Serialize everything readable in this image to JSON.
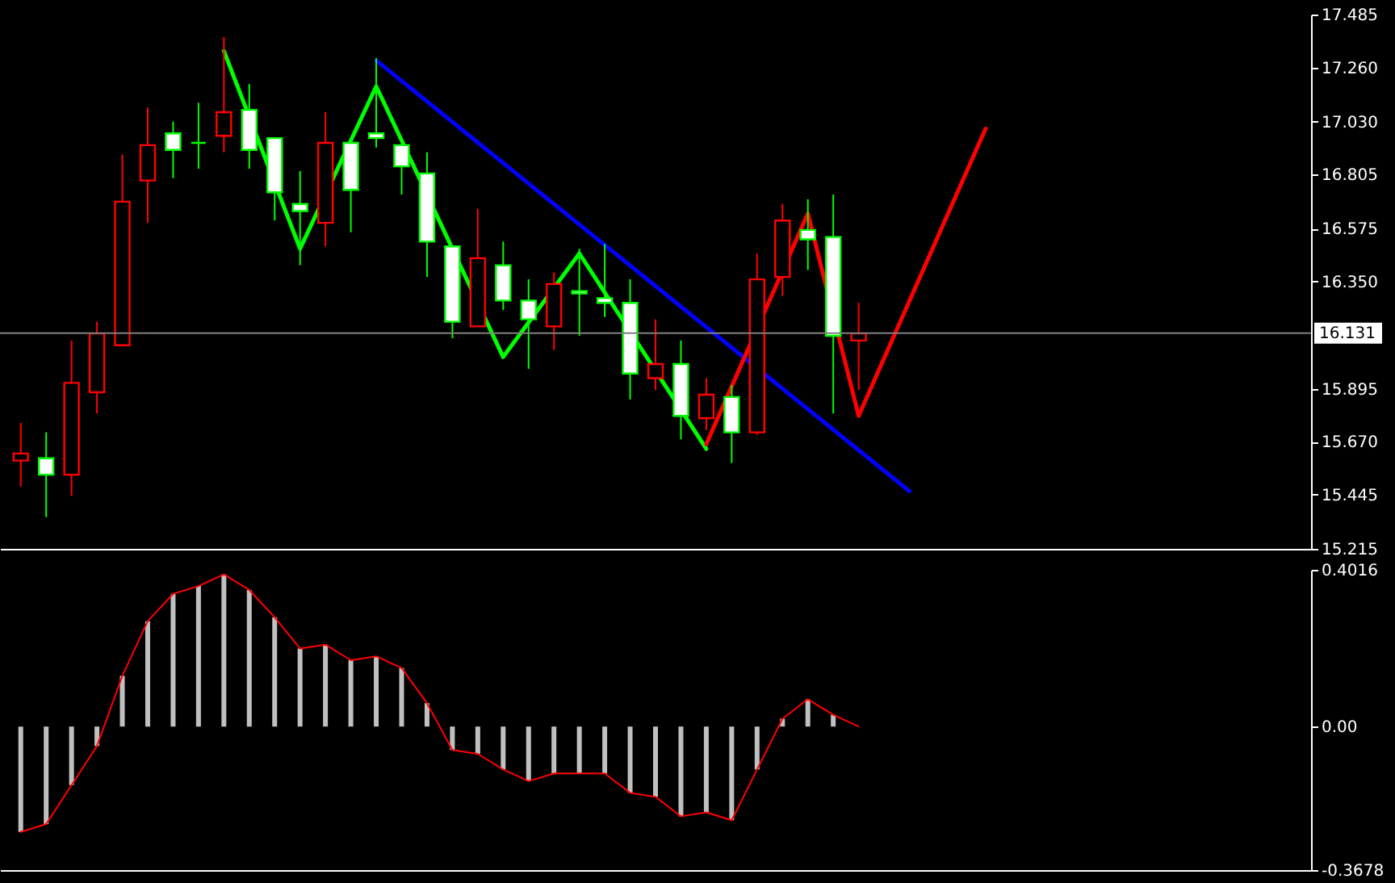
{
  "chart_data": [
    {
      "type": "candlestick",
      "categories": [
        null,
        null,
        null,
        null,
        null,
        null,
        null,
        null,
        null,
        null,
        null,
        null,
        null,
        null,
        null,
        null,
        null,
        null,
        null,
        null,
        null,
        null,
        null,
        null,
        null,
        null,
        null,
        null,
        null,
        null,
        null,
        null,
        null,
        null,
        null,
        null,
        null,
        null,
        null,
        null,
        null,
        null,
        null,
        null,
        null,
        null,
        null,
        null,
        null,
        null,
        null
      ],
      "ohlc": [
        [
          15.59,
          15.75,
          15.48,
          15.62
        ],
        [
          15.6,
          15.71,
          15.35,
          15.53
        ],
        [
          15.53,
          16.1,
          15.44,
          15.92
        ],
        [
          15.88,
          16.18,
          15.79,
          16.13
        ],
        [
          16.08,
          16.89,
          16.08,
          16.69
        ],
        [
          16.78,
          17.09,
          16.6,
          16.93
        ],
        [
          16.98,
          17.03,
          16.79,
          16.91
        ],
        [
          16.94,
          17.11,
          16.83,
          16.94
        ],
        [
          16.97,
          17.39,
          16.9,
          17.07
        ],
        [
          17.08,
          17.19,
          16.83,
          16.91
        ],
        [
          16.96,
          16.96,
          16.61,
          16.73
        ],
        [
          16.68,
          16.82,
          16.42,
          16.65
        ],
        [
          16.6,
          17.07,
          16.5,
          16.94
        ],
        [
          16.94,
          16.94,
          16.56,
          16.74
        ],
        [
          16.98,
          17.3,
          16.92,
          16.96
        ],
        [
          16.93,
          16.93,
          16.72,
          16.84
        ],
        [
          16.81,
          16.9,
          16.37,
          16.52
        ],
        [
          16.5,
          16.5,
          16.11,
          16.18
        ],
        [
          16.16,
          16.66,
          16.16,
          16.45
        ],
        [
          16.42,
          16.52,
          16.23,
          16.27
        ],
        [
          16.27,
          16.36,
          15.98,
          16.19
        ],
        [
          16.16,
          16.39,
          16.06,
          16.34
        ],
        [
          16.31,
          16.49,
          16.12,
          16.3
        ],
        [
          16.28,
          16.51,
          16.2,
          16.26
        ],
        [
          16.26,
          16.36,
          15.85,
          15.96
        ],
        [
          15.94,
          16.19,
          15.89,
          16.0
        ],
        [
          16.0,
          16.1,
          15.68,
          15.78
        ],
        [
          15.77,
          15.94,
          15.72,
          15.87
        ],
        [
          15.86,
          15.91,
          15.58,
          15.71
        ],
        [
          15.71,
          16.47,
          15.7,
          16.36
        ],
        [
          16.37,
          16.68,
          16.29,
          16.61
        ],
        [
          16.57,
          16.7,
          16.4,
          16.53
        ],
        [
          16.54,
          16.72,
          15.79,
          16.12
        ],
        [
          16.1,
          16.26,
          15.89,
          16.13
        ],
        null,
        null,
        null,
        null,
        null,
        null,
        null,
        null,
        null,
        null,
        null,
        null,
        null,
        null,
        null,
        null,
        null
      ],
      "colors": [
        "#ff0000",
        "#00ff00",
        "#ff0000",
        "#ff0000",
        "#ff0000",
        "#ff0000",
        "#00ff00",
        "#00ff00",
        "#ff0000",
        "#00ff00",
        "#00ff00",
        "#00ff00",
        "#ff0000",
        "#00ff00",
        "#00ff00",
        "#00ff00",
        "#00ff00",
        "#00ff00",
        "#ff0000",
        "#00ff00",
        "#00ff00",
        "#ff0000",
        "#00ff00",
        "#00ff00",
        "#00ff00",
        "#ff0000",
        "#00ff00",
        "#ff0000",
        "#00ff00",
        "#ff0000",
        "#ff0000",
        "#00ff00",
        "#00ff00",
        "#ff0000",
        null,
        null,
        null,
        null,
        null,
        null,
        null,
        null,
        null,
        null,
        null,
        null,
        null,
        null,
        null,
        null,
        null
      ],
      "series": [
        {
          "type": "line",
          "color": "#00ff00",
          "values": [
            null,
            null,
            null,
            null,
            null,
            null,
            null,
            null,
            17.33,
            null,
            null,
            16.49,
            null,
            null,
            17.18,
            null,
            null,
            null,
            null,
            16.03,
            null,
            null,
            16.47,
            null,
            null,
            null,
            null,
            15.64,
            null,
            null,
            null,
            null,
            null,
            null,
            null,
            null,
            null,
            null,
            null,
            null,
            null,
            null,
            null,
            null,
            null,
            null,
            null,
            null,
            null,
            null,
            null
          ]
        },
        {
          "type": "line",
          "color": "#0000ff",
          "values": [
            null,
            null,
            null,
            null,
            null,
            null,
            null,
            null,
            null,
            null,
            null,
            null,
            null,
            null,
            17.29,
            null,
            null,
            null,
            null,
            null,
            null,
            null,
            null,
            null,
            null,
            null,
            null,
            null,
            null,
            null,
            null,
            null,
            null,
            null,
            null,
            15.46,
            null,
            null,
            null,
            null,
            null,
            null,
            null,
            null,
            null,
            null,
            null,
            null,
            null,
            null,
            null
          ]
        },
        {
          "type": "line",
          "color": "#ff0000",
          "values": [
            null,
            null,
            null,
            null,
            null,
            null,
            null,
            null,
            null,
            null,
            null,
            null,
            null,
            null,
            null,
            null,
            null,
            null,
            null,
            null,
            null,
            null,
            null,
            null,
            null,
            null,
            null,
            15.66,
            null,
            null,
            null,
            16.64,
            null,
            15.78,
            null,
            null,
            null,
            null,
            17.0,
            null,
            null,
            null,
            null,
            null,
            null,
            null,
            null,
            null,
            null,
            null,
            null
          ]
        }
      ],
      "ylim": [
        15.215,
        17.485
      ],
      "yticks": [
        {
          "value": 15.215,
          "label": "15.215"
        },
        {
          "value": 15.445,
          "label": "15.445"
        },
        {
          "value": 15.67,
          "label": "15.670"
        },
        {
          "value": 15.895,
          "label": "15.895"
        },
        {
          "value": 16.35,
          "label": "16.350"
        },
        {
          "value": 16.575,
          "label": "16.575"
        },
        {
          "value": 16.805,
          "label": "16.805"
        },
        {
          "value": 17.03,
          "label": "17.030"
        },
        {
          "value": 17.26,
          "label": "17.260"
        },
        {
          "value": 17.485,
          "label": "17.485"
        }
      ],
      "ref_lines": [
        {
          "axis": "y",
          "value": 16.131,
          "label": "16.131",
          "color": "#808080"
        }
      ],
      "tick_labels": "y",
      "grid": false
    },
    {
      "type": "bar",
      "categories": [
        null,
        null,
        null,
        null,
        null,
        null,
        null,
        null,
        null,
        null,
        null,
        null,
        null,
        null,
        null,
        null,
        null,
        null,
        null,
        null,
        null,
        null,
        null,
        null,
        null,
        null,
        null,
        null,
        null,
        null,
        null,
        null,
        null,
        null,
        null,
        null,
        null,
        null,
        null,
        null,
        null,
        null,
        null,
        null,
        null,
        null,
        null,
        null,
        null,
        null,
        null
      ],
      "series": [
        {
          "type": "bar",
          "color": "#c0c0c0",
          "values": [
            -0.27,
            -0.25,
            -0.15,
            -0.05,
            0.13,
            0.27,
            0.34,
            0.36,
            0.39,
            0.35,
            0.28,
            0.2,
            0.21,
            0.17,
            0.18,
            0.15,
            0.06,
            -0.06,
            -0.07,
            -0.11,
            -0.14,
            -0.12,
            -0.12,
            -0.12,
            -0.17,
            -0.18,
            -0.23,
            -0.22,
            -0.24,
            -0.11,
            0.02,
            0.07,
            0.03,
            0.0,
            null,
            null,
            null,
            null,
            null,
            null,
            null,
            null,
            null,
            null,
            null,
            null,
            null,
            null,
            null,
            null,
            null
          ]
        },
        {
          "type": "line",
          "color": "#ff0000",
          "values": [
            -0.27,
            -0.25,
            -0.15,
            -0.05,
            0.13,
            0.27,
            0.34,
            0.36,
            0.39,
            0.35,
            0.28,
            0.2,
            0.21,
            0.17,
            0.18,
            0.15,
            0.06,
            -0.06,
            -0.07,
            -0.11,
            -0.14,
            -0.12,
            -0.12,
            -0.12,
            -0.17,
            -0.18,
            -0.23,
            -0.22,
            -0.24,
            -0.11,
            0.02,
            0.07,
            0.03,
            0.0,
            null,
            null,
            null,
            null,
            null,
            null,
            null,
            null,
            null,
            null,
            null,
            null,
            null,
            null,
            null,
            null,
            null
          ]
        }
      ],
      "ylim": [
        -0.3678,
        0.4016
      ],
      "yticks": [
        {
          "value": -0.3678,
          "label": "-0.3678"
        },
        {
          "value": 0,
          "label": "0.00"
        },
        {
          "value": 0.4016,
          "label": "0.4016"
        }
      ],
      "tick_labels": "y",
      "grid": false
    }
  ]
}
